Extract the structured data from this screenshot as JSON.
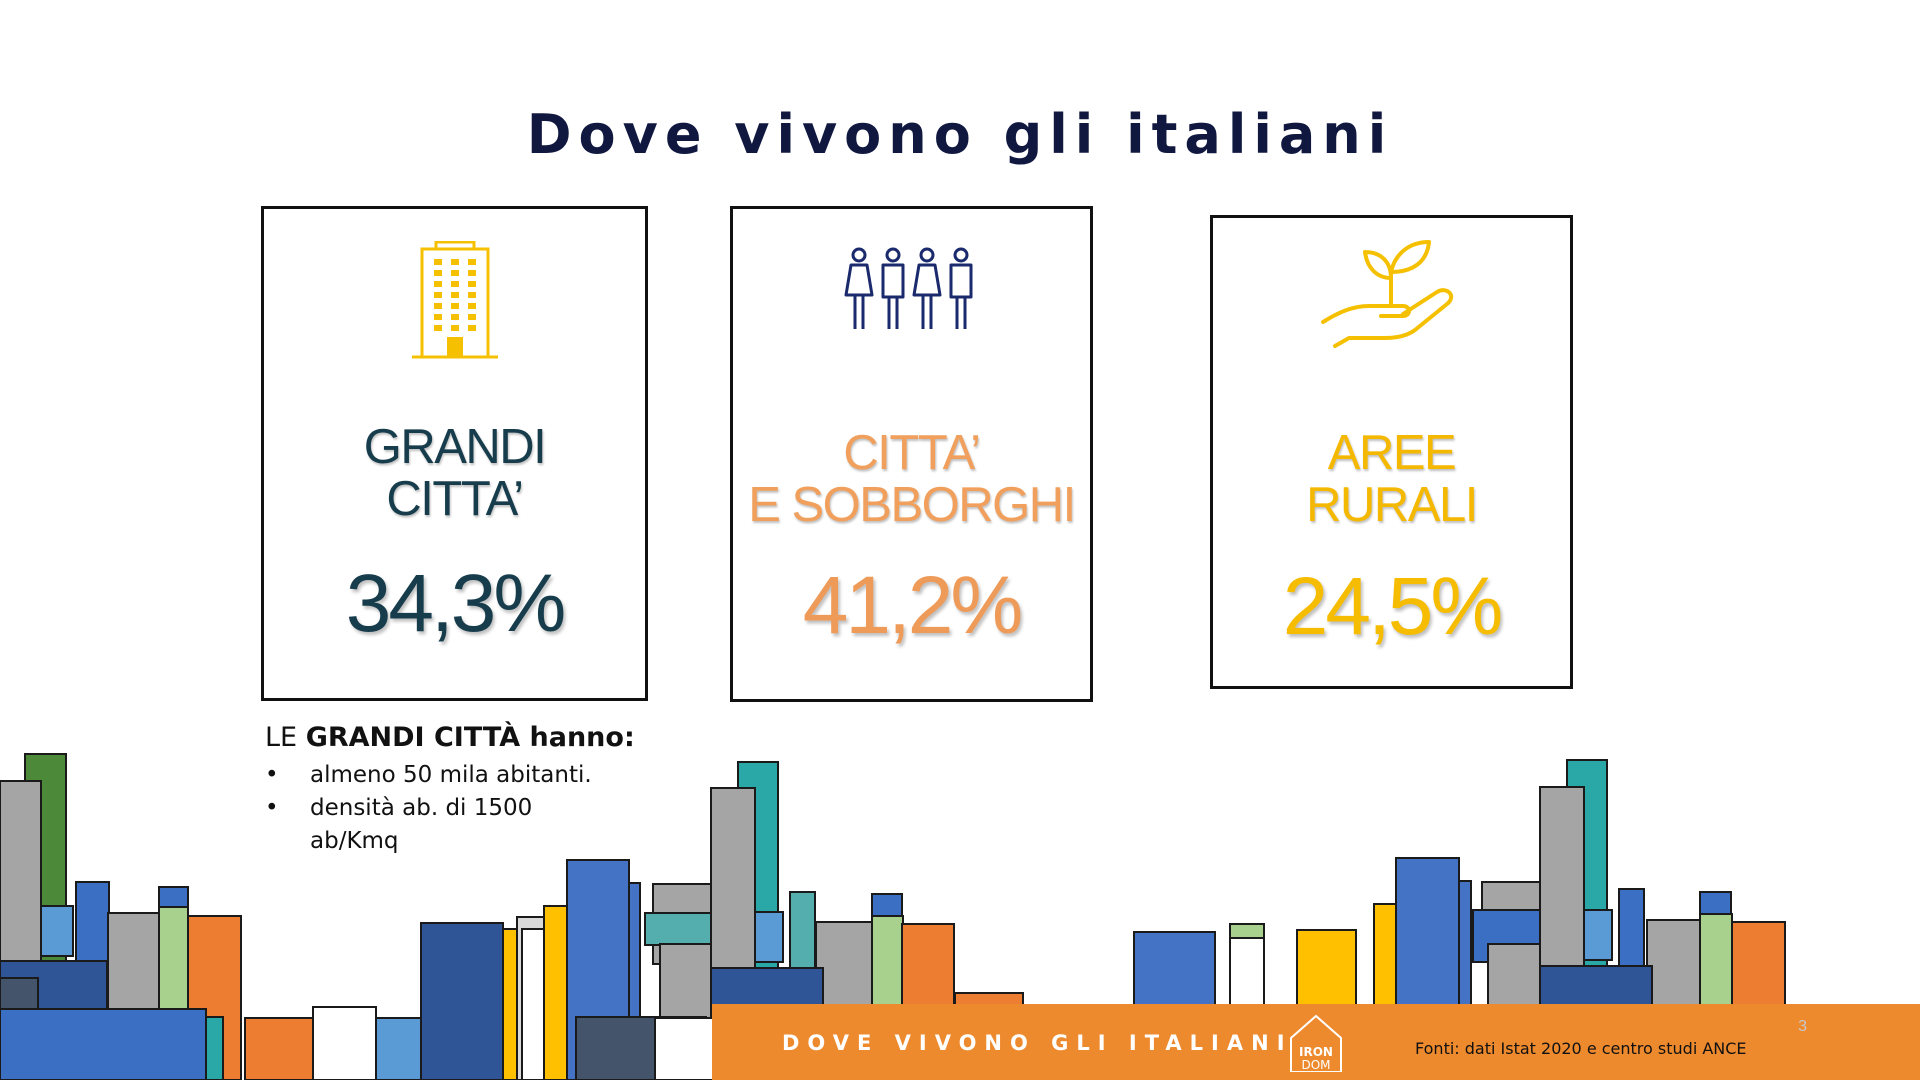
{
  "slide": {
    "title": "Dove vivono gli italiani"
  },
  "cards": [
    {
      "label_line1": "GRANDI",
      "label_line2": "CITTA’",
      "value": "34,3%",
      "icon": "building-icon"
    },
    {
      "label_line1": "CITTA’",
      "label_line2": "E SOBBORGHI",
      "value": "41,2%",
      "icon": "people-icon"
    },
    {
      "label_line1": "AREE",
      "label_line2": "RURALI",
      "value": "24,5%",
      "icon": "plant-in-hand-icon"
    }
  ],
  "note": {
    "heading_prefix": "LE ",
    "heading_bold": "GRANDI CITTÀ hanno:",
    "items": [
      "almeno 50 mila abitanti.",
      "densità ab. di 1500 ab/Kmq"
    ]
  },
  "footer": {
    "title": "DOVE VIVONO GLI ITALIANI",
    "logo_top": "IRON",
    "logo_bottom": "DOM",
    "source": "Fonti: dati Istat 2020 e centro studi ANCE",
    "page_number": "3"
  },
  "colors": {
    "title": "#101840",
    "grandi_citta": "#173d4d",
    "citta_sobborghi": "#ee9a58",
    "aree_rurali": "#f5bc00",
    "footer_bar": "#ee8a2e",
    "icon_yellow": "#f5c000",
    "icon_navy": "#1a2a6c"
  }
}
